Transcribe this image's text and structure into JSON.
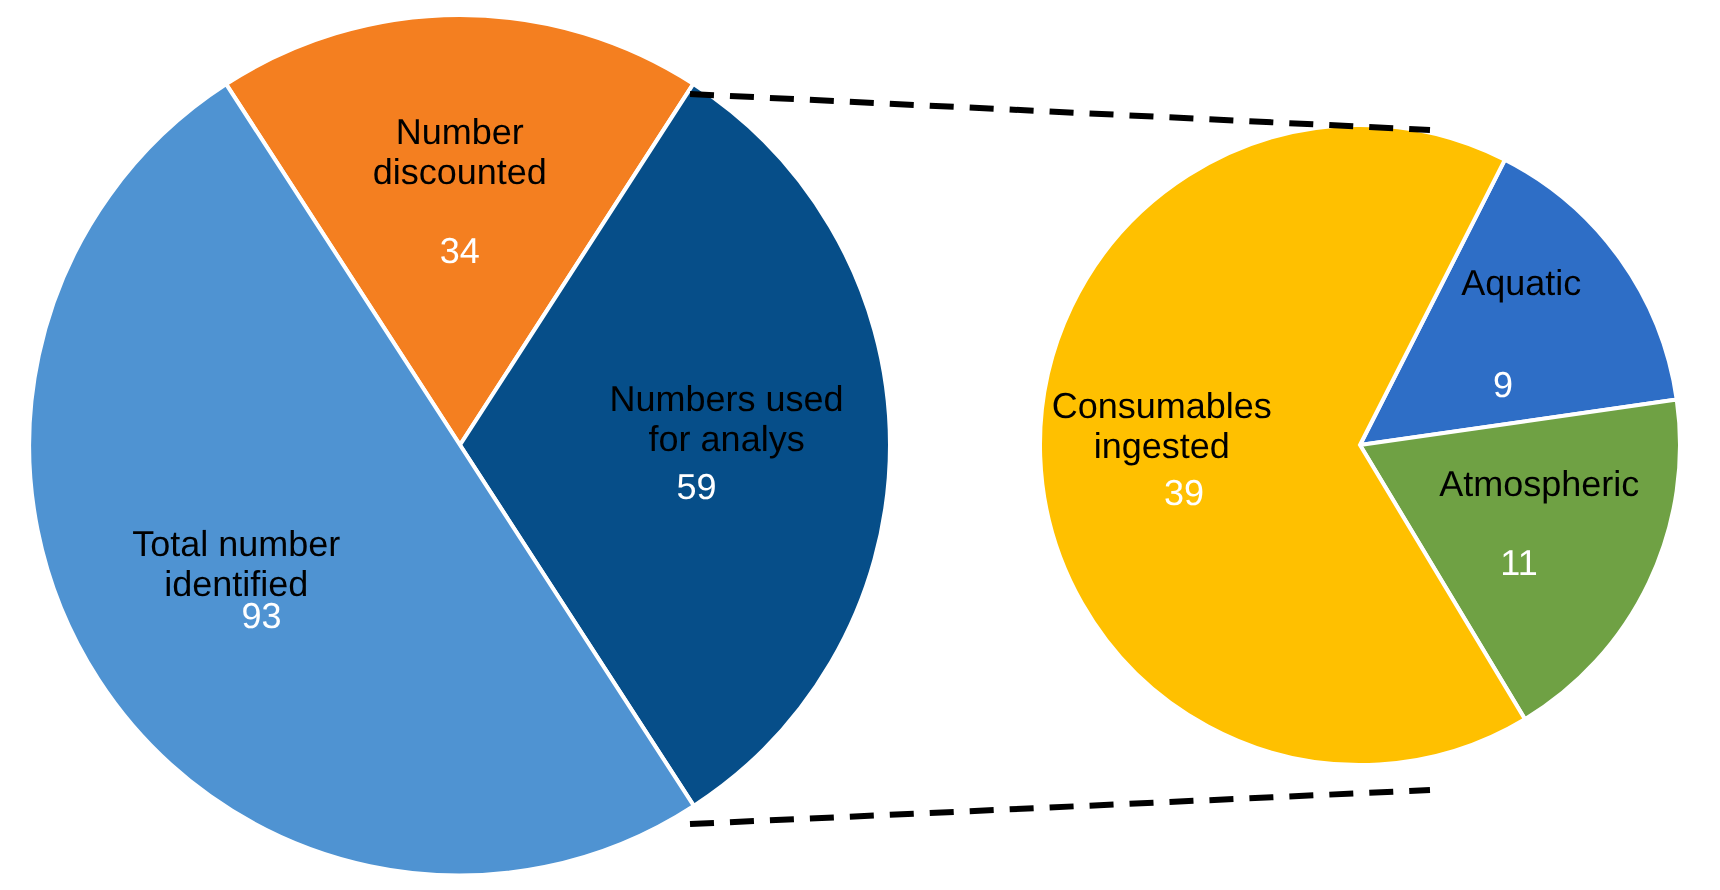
{
  "chart_data": [
    {
      "type": "pie",
      "categories": [
        "Number discounted",
        "Numbers used for analys",
        "Total number identified"
      ],
      "values": [
        34,
        59,
        93
      ],
      "colors": [
        "#f47f20",
        "#064e89",
        "#4f93d2"
      ],
      "data_labels": true
    },
    {
      "type": "pie",
      "categories": [
        "Aquatic",
        "Atmospheric",
        "Consumables ingested"
      ],
      "values": [
        9,
        11,
        39
      ],
      "colors": [
        "#2e6ec6",
        "#6fa144",
        "#ffc000"
      ],
      "data_labels": true
    }
  ]
}
